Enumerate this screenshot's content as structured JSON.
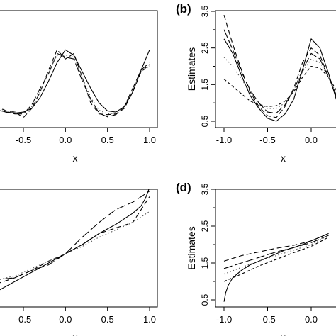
{
  "chart_data": [
    {
      "id": "a",
      "type": "line",
      "panel_label": "",
      "xlabel": "x",
      "ylabel": "",
      "xlim": [
        -1.0,
        1.0
      ],
      "ylim": [
        0.5,
        3.5
      ],
      "x_ticks": [
        "-0.5",
        "0.0",
        "0.5",
        "1.0"
      ],
      "x_tick_values": [
        -0.5,
        0.0,
        0.5,
        1.0
      ],
      "y_ticks": [],
      "y_tick_values": [],
      "series": [
        {
          "style": "solid",
          "x": [
            -1.0,
            -0.9,
            -0.8,
            -0.7,
            -0.6,
            -0.5,
            -0.4,
            -0.3,
            -0.2,
            -0.1,
            0.0,
            0.1,
            0.2,
            0.3,
            0.4,
            0.5,
            0.6,
            0.7,
            0.8,
            0.9,
            1.0
          ],
          "y": [
            1.05,
            0.9,
            0.8,
            0.75,
            0.72,
            0.75,
            0.85,
            1.15,
            1.6,
            2.1,
            2.45,
            2.3,
            1.85,
            1.4,
            1.0,
            0.78,
            0.75,
            0.9,
            1.3,
            1.9,
            2.45
          ]
        },
        {
          "style": "dashed",
          "x": [
            -1.0,
            -0.9,
            -0.8,
            -0.7,
            -0.6,
            -0.5,
            -0.4,
            -0.3,
            -0.2,
            -0.1,
            0.0,
            0.1,
            0.2,
            0.3,
            0.4,
            0.5,
            0.6,
            0.7,
            0.8,
            0.9,
            1.0
          ],
          "y": [
            1.1,
            0.95,
            0.88,
            0.78,
            0.75,
            0.6,
            0.85,
            1.3,
            1.9,
            2.45,
            2.2,
            2.35,
            1.7,
            1.0,
            0.7,
            0.68,
            0.7,
            0.85,
            1.3,
            1.85,
            2.05
          ]
        },
        {
          "style": "longdash",
          "x": [
            -1.0,
            -0.9,
            -0.8,
            -0.7,
            -0.6,
            -0.5,
            -0.4,
            -0.3,
            -0.2,
            -0.1,
            0.0,
            0.1,
            0.2,
            0.3,
            0.4,
            0.5,
            0.6,
            0.7,
            0.8,
            0.9,
            1.0
          ],
          "y": [
            1.0,
            0.92,
            0.82,
            0.74,
            0.7,
            0.7,
            0.95,
            1.4,
            1.8,
            2.35,
            2.25,
            2.2,
            1.6,
            1.1,
            0.72,
            0.62,
            0.68,
            0.9,
            1.4,
            1.9,
            2.1
          ]
        },
        {
          "style": "dotted",
          "x": [
            -1.0,
            -0.9,
            -0.8,
            -0.7,
            -0.6,
            -0.5,
            -0.4,
            -0.3,
            -0.2,
            -0.1,
            0.0,
            0.1,
            0.2,
            0.3,
            0.4,
            0.5,
            0.6,
            0.7,
            0.8,
            0.9,
            1.0
          ],
          "y": [
            1.05,
            0.95,
            0.85,
            0.78,
            0.75,
            0.72,
            0.9,
            1.3,
            1.85,
            2.3,
            2.3,
            2.25,
            1.7,
            1.15,
            0.8,
            0.7,
            0.72,
            0.9,
            1.35,
            1.85,
            2.0
          ]
        }
      ]
    },
    {
      "id": "b",
      "type": "line",
      "panel_label": "(b)",
      "xlabel": "x",
      "ylabel": "Estimates",
      "xlim": [
        -1.1,
        1.0
      ],
      "ylim": [
        0.5,
        3.5
      ],
      "x_ticks": [
        "-1.0",
        "-0.5",
        "0.0"
      ],
      "x_tick_values": [
        -1.0,
        -0.5,
        0.0
      ],
      "y_ticks": [
        "0.5",
        "1.5",
        "2.5",
        "3.5"
      ],
      "y_tick_values": [
        0.5,
        1.5,
        2.5,
        3.5
      ],
      "y_minor_ticks": [
        1.0,
        2.0,
        3.0
      ],
      "series": [
        {
          "style": "solid",
          "x": [
            -1.0,
            -0.9,
            -0.8,
            -0.7,
            -0.6,
            -0.5,
            -0.4,
            -0.3,
            -0.2,
            -0.1,
            0.0,
            0.1,
            0.2,
            0.3
          ],
          "y": [
            2.75,
            2.35,
            1.75,
            1.2,
            0.85,
            0.58,
            0.5,
            0.7,
            1.1,
            1.9,
            2.75,
            2.5,
            1.8,
            1.0
          ]
        },
        {
          "style": "dashed",
          "x": [
            -1.0,
            -0.9,
            -0.8,
            -0.7,
            -0.6,
            -0.5,
            -0.4,
            -0.3,
            -0.2,
            -0.1,
            0.0,
            0.1,
            0.2,
            0.3
          ],
          "y": [
            3.4,
            2.6,
            1.9,
            1.3,
            0.9,
            0.65,
            0.6,
            0.9,
            1.4,
            2.1,
            2.5,
            2.3,
            1.7,
            1.1
          ]
        },
        {
          "style": "longdash",
          "x": [
            -1.0,
            -0.9,
            -0.8,
            -0.7,
            -0.6,
            -0.5,
            -0.4,
            -0.3,
            -0.2,
            -0.1,
            0.0,
            0.1,
            0.2,
            0.3
          ],
          "y": [
            3.0,
            2.45,
            1.85,
            1.35,
            1.0,
            0.75,
            0.72,
            0.95,
            1.35,
            1.9,
            2.35,
            2.2,
            1.7,
            1.15
          ]
        },
        {
          "style": "dotted",
          "x": [
            -1.0,
            -0.9,
            -0.8,
            -0.7,
            -0.6,
            -0.5,
            -0.4,
            -0.3,
            -0.2,
            -0.1,
            0.0,
            0.1,
            0.2,
            0.3
          ],
          "y": [
            2.25,
            2.0,
            1.65,
            1.3,
            1.0,
            0.85,
            0.85,
            1.0,
            1.35,
            1.85,
            2.2,
            2.1,
            1.7,
            1.2
          ]
        },
        {
          "style": "shortdash",
          "x": [
            -1.0,
            -0.9,
            -0.8,
            -0.7,
            -0.6,
            -0.5,
            -0.4,
            -0.3,
            -0.2,
            -0.1,
            0.0,
            0.1,
            0.2,
            0.3
          ],
          "y": [
            1.65,
            1.45,
            1.25,
            1.05,
            0.95,
            0.9,
            0.92,
            1.05,
            1.3,
            1.7,
            2.0,
            1.95,
            1.7,
            1.3
          ]
        }
      ]
    },
    {
      "id": "c",
      "type": "line",
      "panel_label": "",
      "xlabel": "x",
      "ylabel": "",
      "xlim": [
        -1.0,
        1.0
      ],
      "ylim": [
        0.5,
        3.5
      ],
      "x_ticks": [
        "-0.5",
        "0.0",
        "0.5",
        "1.0"
      ],
      "x_tick_values": [
        -0.5,
        0.0,
        0.5,
        1.0
      ],
      "y_ticks": [],
      "y_tick_values": [],
      "series": [
        {
          "style": "solid",
          "x": [
            -1.0,
            -0.8,
            -0.6,
            -0.4,
            -0.2,
            0.0,
            0.2,
            0.4,
            0.6,
            0.8,
            0.9,
            0.95,
            1.0
          ],
          "y": [
            0.5,
            0.75,
            1.0,
            1.25,
            1.5,
            1.75,
            2.0,
            2.3,
            2.55,
            2.85,
            3.05,
            3.25,
            3.55
          ]
        },
        {
          "style": "longdash",
          "x": [
            -1.0,
            -0.8,
            -0.6,
            -0.4,
            -0.2,
            0.0,
            0.2,
            0.4,
            0.6,
            0.8,
            1.0
          ],
          "y": [
            1.0,
            1.05,
            1.1,
            1.3,
            1.45,
            1.75,
            2.2,
            2.6,
            2.95,
            3.15,
            3.45
          ]
        },
        {
          "style": "dashed",
          "x": [
            -1.0,
            -0.8,
            -0.6,
            -0.4,
            -0.2,
            0.0,
            0.2,
            0.4,
            0.6,
            0.8,
            1.0
          ],
          "y": [
            0.85,
            0.95,
            1.1,
            1.3,
            1.55,
            1.75,
            2.0,
            2.3,
            2.45,
            2.6,
            3.3
          ]
        },
        {
          "style": "dotted",
          "x": [
            -1.0,
            -0.8,
            -0.6,
            -0.4,
            -0.2,
            0.0,
            0.2,
            0.4,
            0.6,
            0.8,
            1.0
          ],
          "y": [
            0.95,
            1.05,
            1.15,
            1.35,
            1.55,
            1.75,
            1.95,
            2.2,
            2.4,
            2.6,
            2.9
          ]
        }
      ]
    },
    {
      "id": "d",
      "type": "line",
      "panel_label": "(d)",
      "xlabel": "x",
      "ylabel": "Estimates",
      "xlim": [
        -1.1,
        1.0
      ],
      "ylim": [
        0.5,
        3.5
      ],
      "x_ticks": [
        "-1.0",
        "-0.5",
        "0.0"
      ],
      "x_tick_values": [
        -1.0,
        -0.5,
        0.0
      ],
      "y_ticks": [
        "0.5",
        "1.5",
        "2.5",
        "3.5"
      ],
      "y_tick_values": [
        0.5,
        1.5,
        2.5,
        3.5
      ],
      "y_minor_ticks": [
        1.0,
        2.0,
        3.0
      ],
      "series": [
        {
          "style": "solid",
          "x": [
            -1.0,
            -0.98,
            -0.95,
            -0.9,
            -0.8,
            -0.7,
            -0.6,
            -0.5,
            -0.4,
            -0.3,
            -0.2,
            -0.1,
            0.0,
            0.1,
            0.2
          ],
          "y": [
            0.45,
            0.7,
            0.9,
            1.1,
            1.3,
            1.45,
            1.55,
            1.65,
            1.75,
            1.85,
            1.92,
            2.0,
            2.1,
            2.2,
            2.3
          ]
        },
        {
          "style": "dashed",
          "x": [
            -1.0,
            -0.8,
            -0.6,
            -0.4,
            -0.2,
            0.0,
            0.2
          ],
          "y": [
            1.55,
            1.7,
            1.8,
            1.9,
            1.98,
            2.1,
            2.3
          ]
        },
        {
          "style": "longdash",
          "x": [
            -1.0,
            -0.8,
            -0.6,
            -0.4,
            -0.2,
            0.0,
            0.2
          ],
          "y": [
            1.35,
            1.5,
            1.65,
            1.8,
            1.92,
            2.05,
            2.25
          ]
        },
        {
          "style": "dotted",
          "x": [
            -1.0,
            -0.8,
            -0.6,
            -0.4,
            -0.2,
            0.0,
            0.2
          ],
          "y": [
            1.2,
            1.38,
            1.55,
            1.7,
            1.85,
            2.0,
            2.25
          ]
        },
        {
          "style": "shortdash",
          "x": [
            -1.0,
            -0.8,
            -0.6,
            -0.4,
            -0.2,
            0.0,
            0.2
          ],
          "y": [
            1.0,
            1.2,
            1.42,
            1.6,
            1.78,
            1.95,
            2.2
          ]
        }
      ]
    }
  ]
}
